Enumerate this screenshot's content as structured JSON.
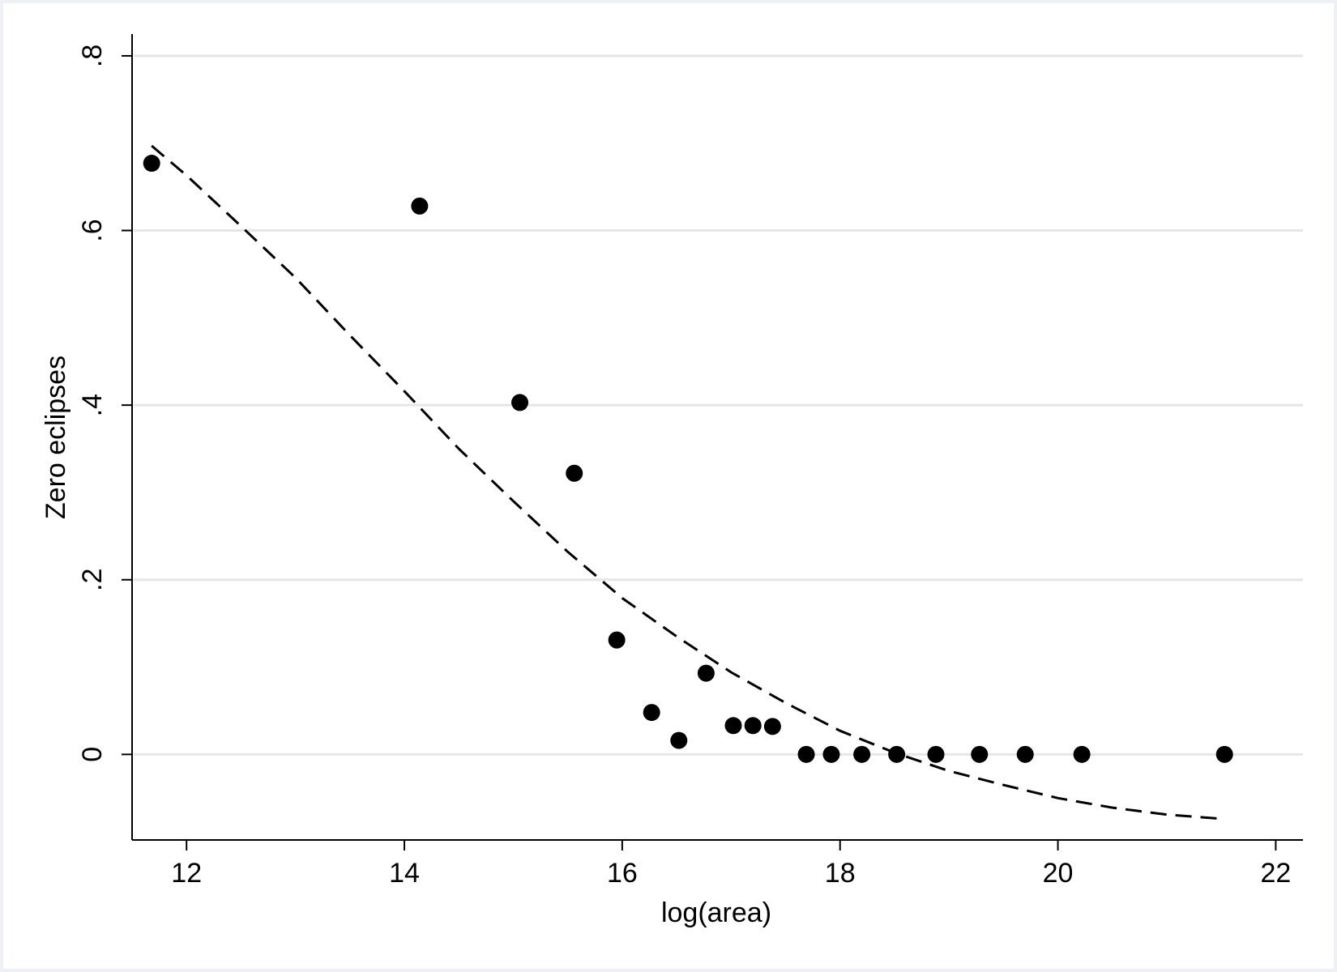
{
  "chart_data": {
    "type": "scatter",
    "title": "",
    "xlabel": "log(area)",
    "ylabel": "Zero eclipses",
    "xlim": [
      11.5,
      22.25
    ],
    "ylim": [
      -0.098,
      0.825
    ],
    "xticks": [
      12,
      14,
      16,
      18,
      20,
      22
    ],
    "xtick_labels": [
      "12",
      "14",
      "16",
      "18",
      "20",
      "22"
    ],
    "yticks": [
      0,
      0.2,
      0.4,
      0.6,
      0.8
    ],
    "ytick_labels": [
      "0",
      ".2",
      ".4",
      ".6",
      ".8"
    ],
    "grid": true,
    "legend": "none",
    "series": [
      {
        "type": "scatter",
        "marker": "filled-circle",
        "color": "#000000",
        "x": [
          11.68,
          14.14,
          15.06,
          15.56,
          15.95,
          16.27,
          16.52,
          16.77,
          17.02,
          17.2,
          17.38,
          17.69,
          17.92,
          18.2,
          18.52,
          18.88,
          19.28,
          19.7,
          20.22,
          21.53
        ],
        "y": [
          0.677,
          0.628,
          0.403,
          0.322,
          0.131,
          0.048,
          0.016,
          0.093,
          0.033,
          0.033,
          0.032,
          0,
          0,
          0,
          0,
          0,
          0,
          0,
          0,
          0
        ]
      },
      {
        "type": "line",
        "style": "dashed",
        "color": "#000000",
        "x": [
          11.68,
          12,
          12.5,
          13,
          13.5,
          14,
          14.5,
          15,
          15.5,
          16,
          16.5,
          17,
          17.5,
          18,
          18.5,
          19,
          19.5,
          20,
          20.5,
          21,
          21.53
        ],
        "y": [
          0.697,
          0.663,
          0.605,
          0.546,
          0.48,
          0.416,
          0.35,
          0.29,
          0.232,
          0.179,
          0.135,
          0.094,
          0.059,
          0.027,
          0.002,
          -0.019,
          -0.035,
          -0.05,
          -0.061,
          -0.069,
          -0.074
        ]
      }
    ]
  }
}
